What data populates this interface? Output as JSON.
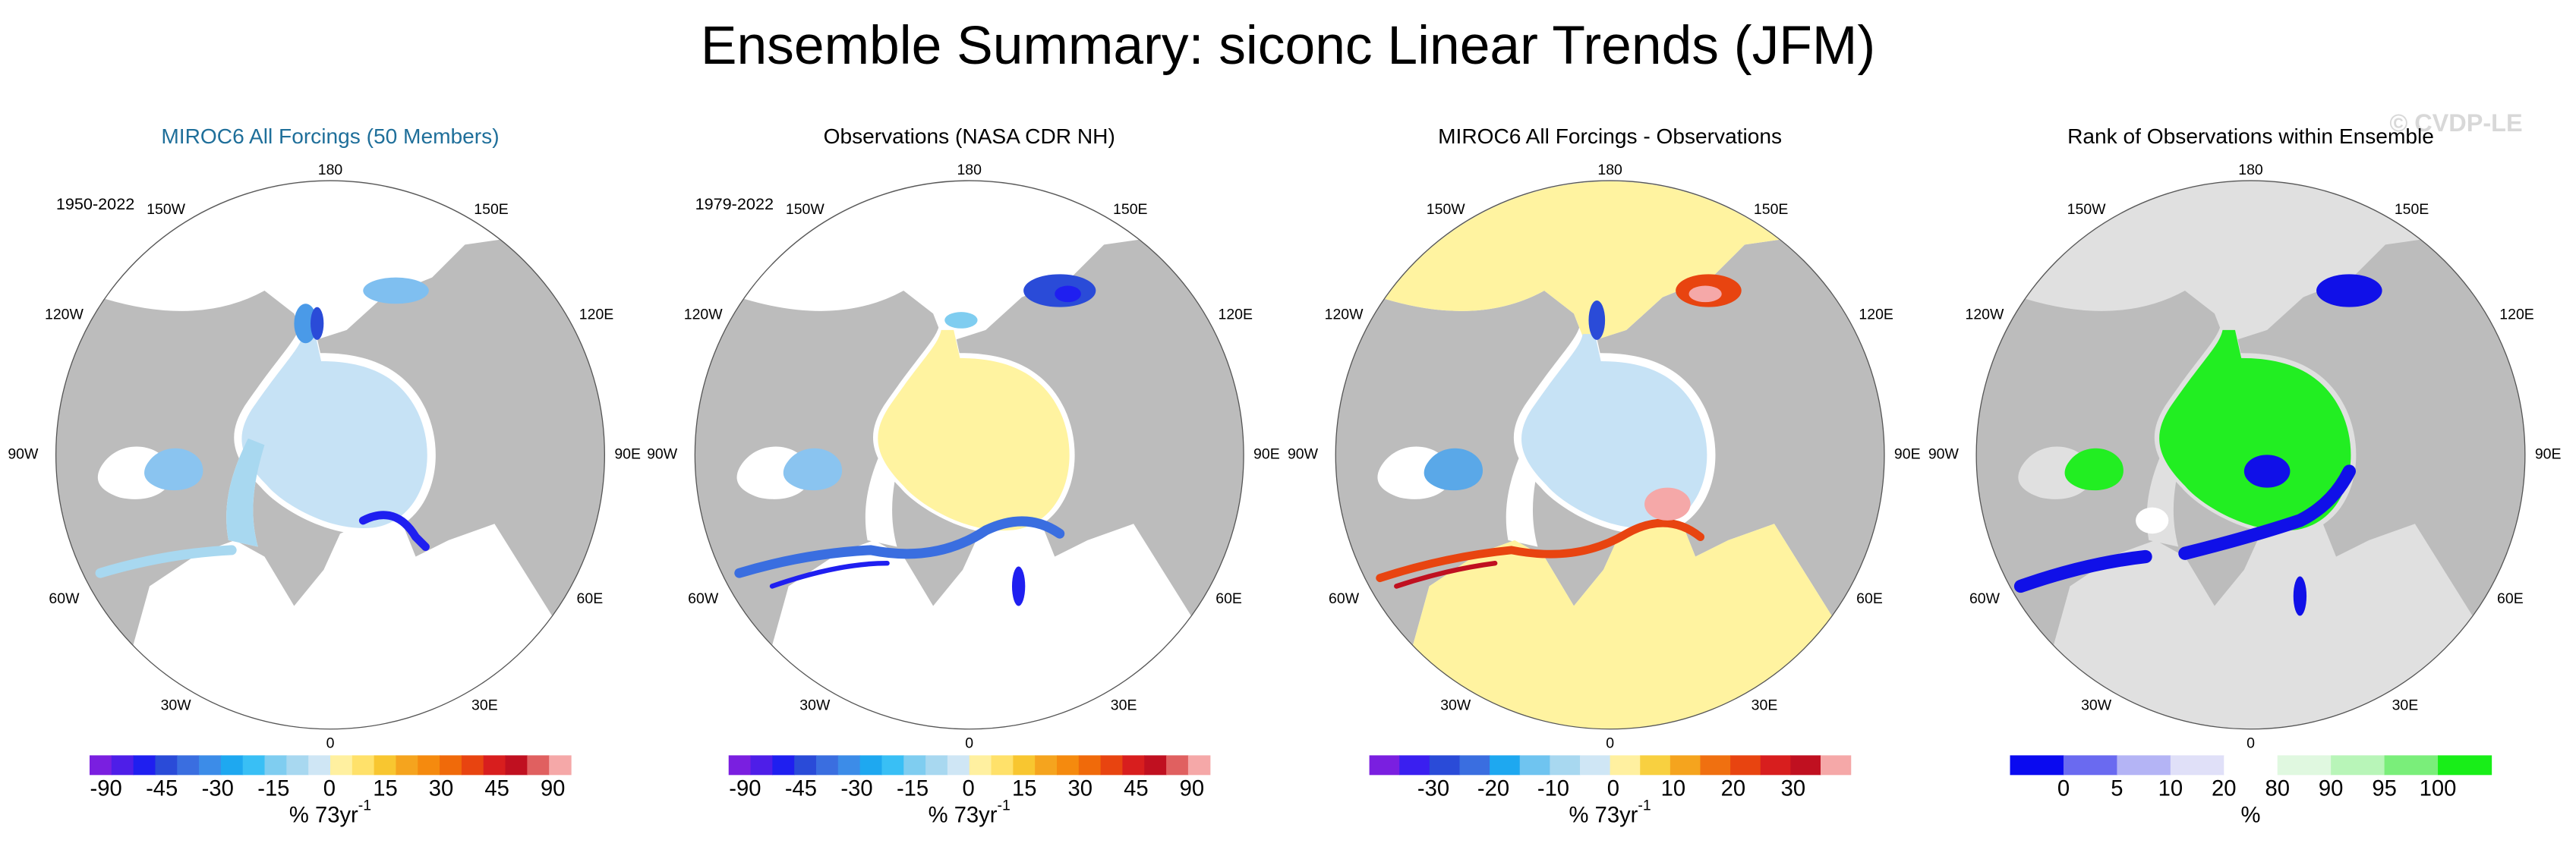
{
  "title": "Ensemble Summary: siconc Linear Trends (JFM)",
  "watermark": "© CVDP-LE",
  "panels": [
    {
      "title": "MIROC6 All Forcings (50 Members)",
      "title_color": "#1f6f9a",
      "period": "1950-2022",
      "longitudes": [
        "180",
        "150W",
        "150E",
        "120W",
        "120E",
        "90W",
        "90E",
        "60W",
        "60E",
        "30W",
        "30E",
        "0"
      ],
      "colorbar": {
        "colors": [
          "#7a1fe0",
          "#4e1ee8",
          "#1f1ff0",
          "#2a4bd8",
          "#3a6ee0",
          "#3c8ce8",
          "#1ea8f0",
          "#39bff5",
          "#7fcdf0",
          "#a8d8f0",
          "#cfe6f5",
          "#fff0a0",
          "#ffe16a",
          "#f8c630",
          "#f5a41e",
          "#f58a0e",
          "#f06a0a",
          "#e84410",
          "#d81e1e",
          "#c01020",
          "#e06060",
          "#f5a8a8"
        ],
        "ticks": [
          -90,
          -45,
          -30,
          -15,
          0,
          15,
          30,
          45,
          90
        ],
        "unit": "% 73yr",
        "unit_exponent": "-1"
      }
    },
    {
      "title": "Observations (NASA CDR NH)",
      "title_color": "#000000",
      "period": "1979-2022",
      "longitudes": [
        "180",
        "150W",
        "150E",
        "120W",
        "120E",
        "90W",
        "90E",
        "60W",
        "60E",
        "30W",
        "30E",
        "0"
      ],
      "colorbar": {
        "colors": [
          "#7a1fe0",
          "#4e1ee8",
          "#1f1ff0",
          "#2a4bd8",
          "#3a6ee0",
          "#3c8ce8",
          "#1ea8f0",
          "#39bff5",
          "#7fcdf0",
          "#a8d8f0",
          "#cfe6f5",
          "#fff0a0",
          "#ffe16a",
          "#f8c630",
          "#f5a41e",
          "#f58a0e",
          "#f06a0a",
          "#e84410",
          "#d81e1e",
          "#c01020",
          "#e06060",
          "#f5a8a8"
        ],
        "ticks": [
          -90,
          -45,
          -30,
          -15,
          0,
          15,
          30,
          45,
          90
        ],
        "unit": "% 73yr",
        "unit_exponent": "-1"
      }
    },
    {
      "title": "MIROC6 All Forcings - Observations",
      "title_color": "#000000",
      "longitudes": [
        "180",
        "150W",
        "150E",
        "120W",
        "120E",
        "90W",
        "90E",
        "60W",
        "60E",
        "30W",
        "30E",
        "0"
      ],
      "colorbar": {
        "colors": [
          "#7a1fe0",
          "#3a1ff0",
          "#2a4bd8",
          "#3a6ee0",
          "#1ea8f0",
          "#6fc4f0",
          "#a8d8f0",
          "#cfe6f5",
          "#fff0a0",
          "#f8d040",
          "#f5a41e",
          "#f07010",
          "#e84410",
          "#d81e1e",
          "#c01020",
          "#f5a8a8"
        ],
        "ticks": [
          -30,
          -20,
          -10,
          0,
          10,
          20,
          30
        ],
        "unit": "% 73yr",
        "unit_exponent": "-1"
      }
    },
    {
      "title": "Rank of Observations within Ensemble",
      "title_color": "#000000",
      "longitudes": [
        "180",
        "150W",
        "150E",
        "120W",
        "120E",
        "90W",
        "90E",
        "60W",
        "60E",
        "30W",
        "30E",
        "0"
      ],
      "colorbar": {
        "colors": [
          "#0a0af0",
          "#6a6af0",
          "#b4b4f5",
          "#e0e0f8",
          "#ffffff",
          "#e0f8e0",
          "#b8f5b8",
          "#7aee7a",
          "#18ee18"
        ],
        "ticks": [
          0,
          5,
          10,
          20,
          80,
          90,
          95,
          100
        ],
        "unit": "%"
      }
    }
  ]
}
